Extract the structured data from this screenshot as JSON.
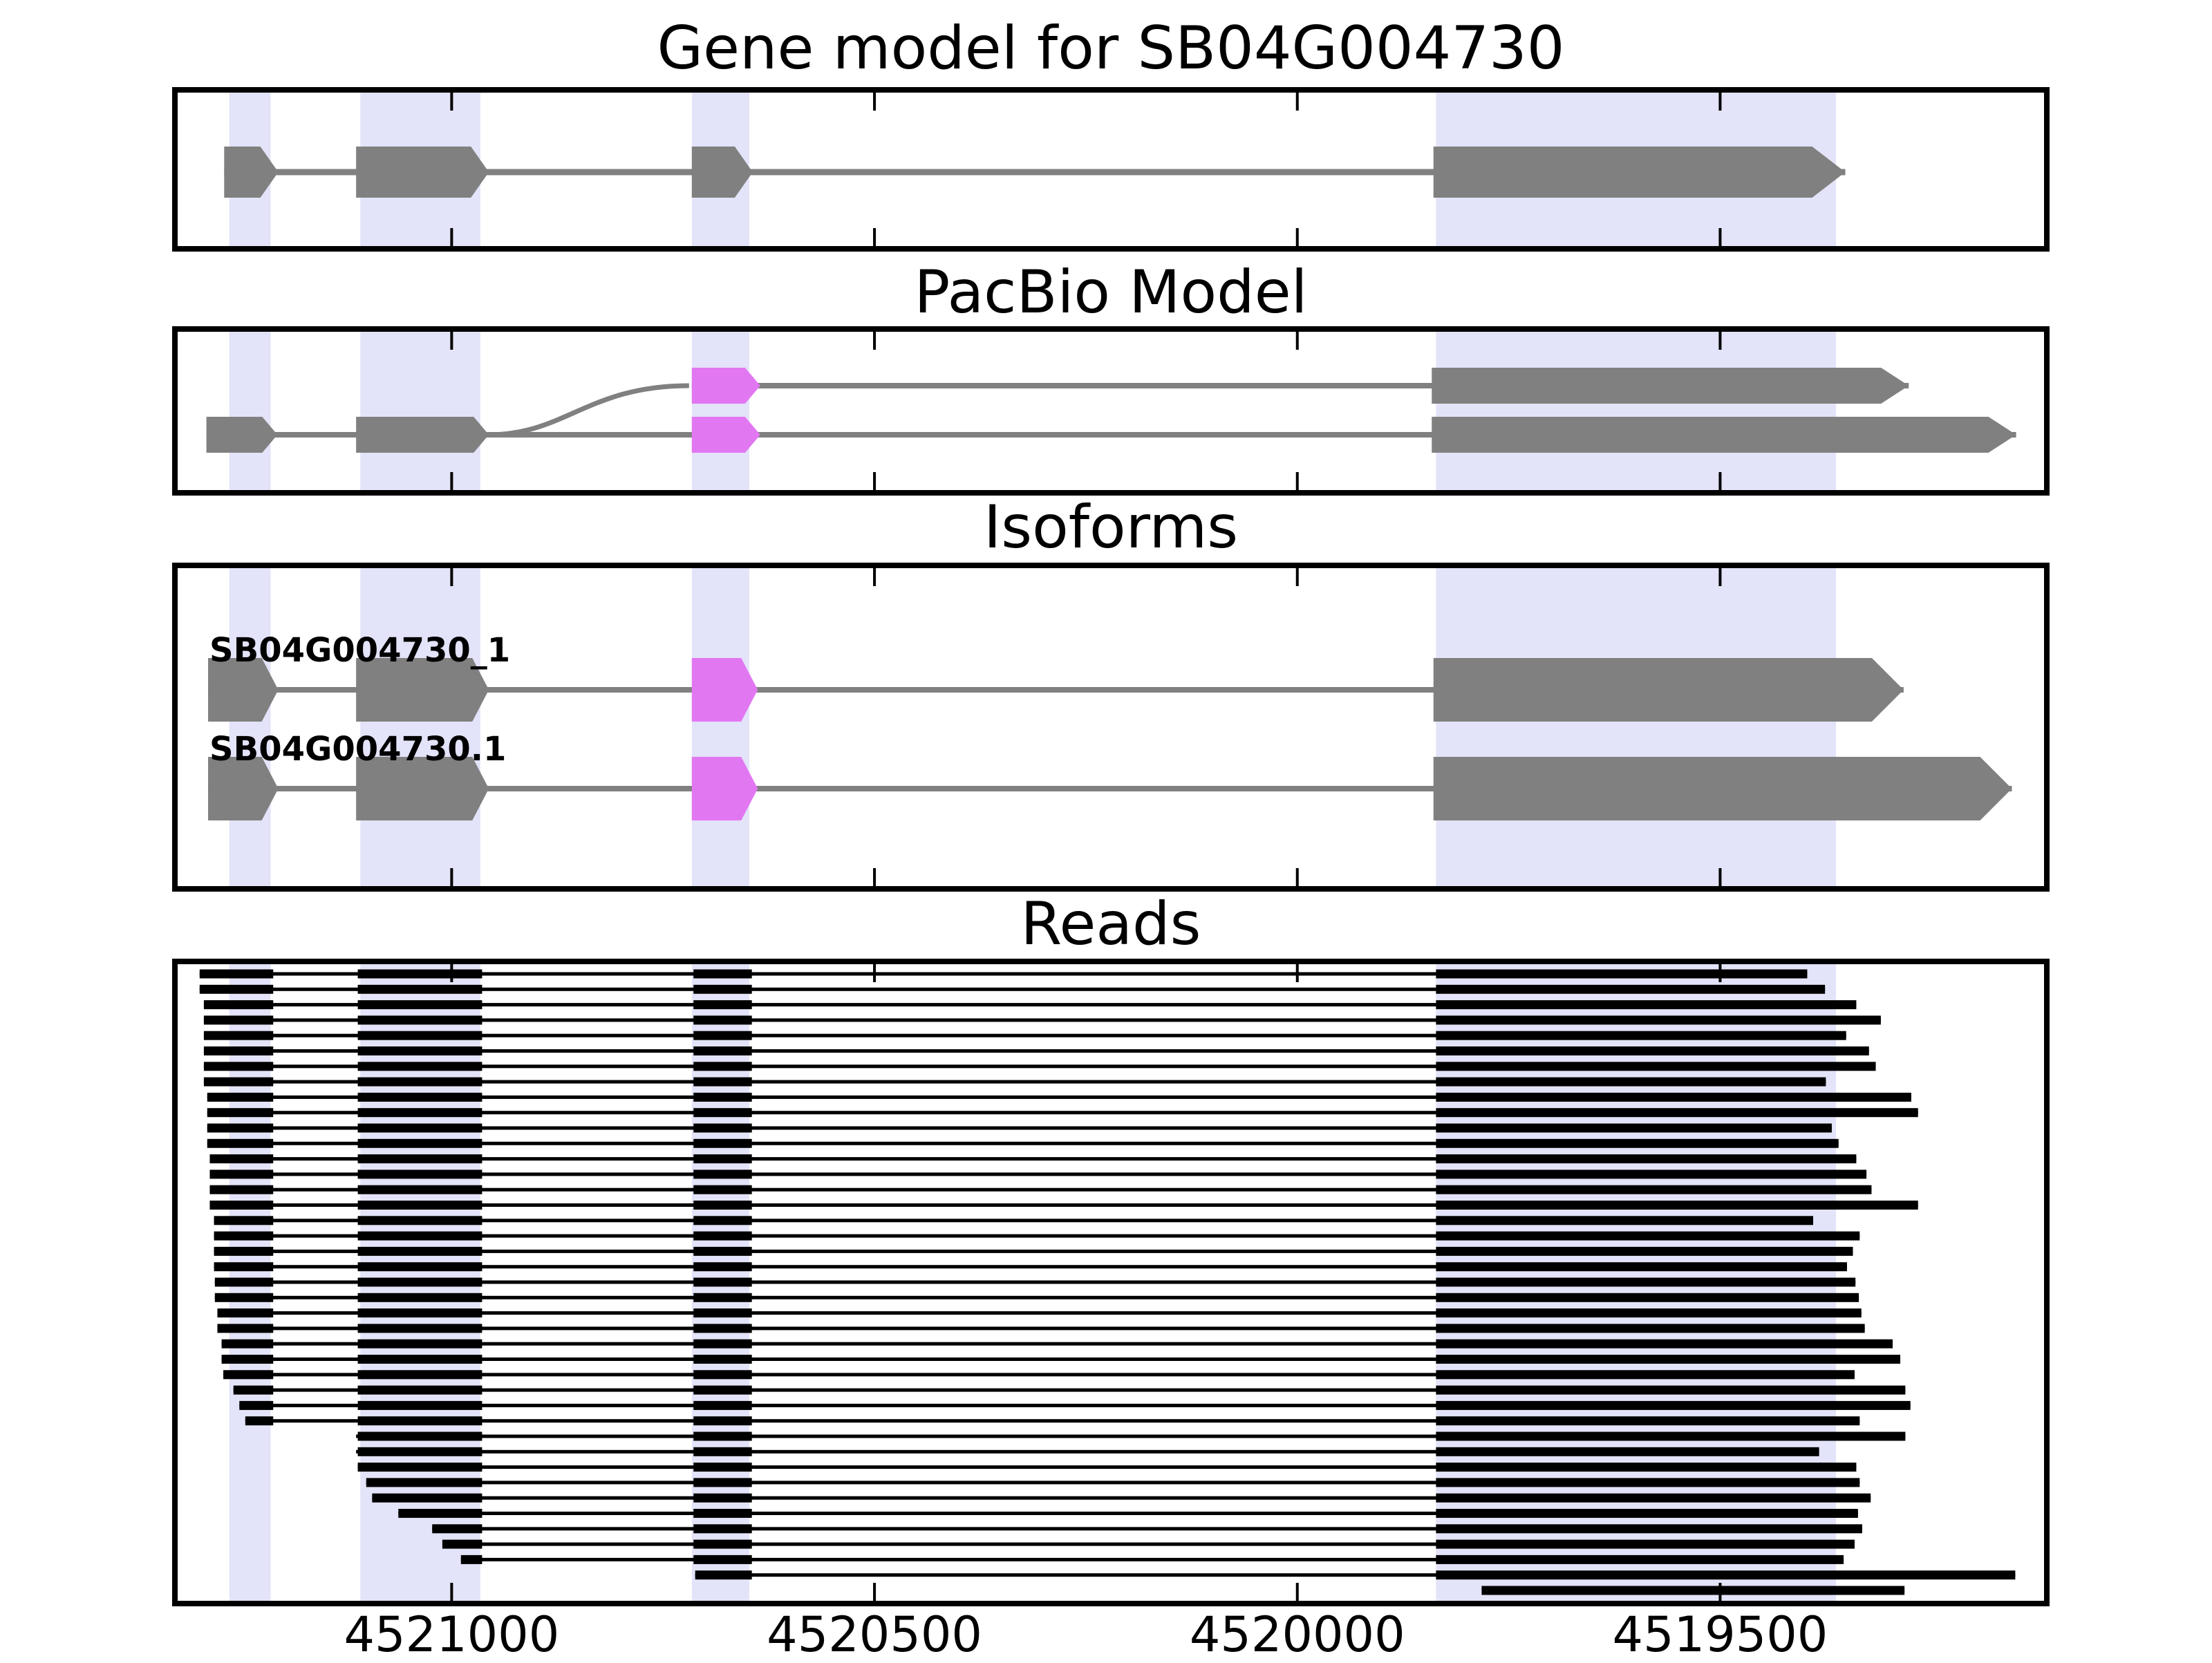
{
  "main_title": "Gene model for SB04G004730",
  "panels": {
    "gene_model": {
      "title": "Gene model for SB04G004730"
    },
    "pacbio": {
      "title": "PacBio Model"
    },
    "isoforms": {
      "title": "Isoforms"
    },
    "reads": {
      "title": "Reads"
    }
  },
  "colors": {
    "exon_gray": "#808080",
    "novel_exon_magenta": "#E277F2",
    "highlight_band": "#E3E3F9",
    "read_black": "#000000",
    "axis_black": "#000000",
    "background": "#ffffff"
  },
  "axis": {
    "direction": "decreasing",
    "xlim": [
      4521324,
      4519117
    ],
    "ticks": [
      {
        "coord": 4521000,
        "label": "4521000"
      },
      {
        "coord": 4520500,
        "label": "4520500"
      },
      {
        "coord": 4520000,
        "label": "4520000"
      },
      {
        "coord": 4519500,
        "label": "4519500"
      }
    ]
  },
  "chart_data": {
    "type": "gene-model-tracks",
    "title": "Gene model for SB04G004730",
    "gene_id": "SB04G004730",
    "highlight_regions": [
      [
        4521263,
        4521214
      ],
      [
        4521108,
        4520966
      ],
      [
        4520716,
        4520648
      ],
      [
        4519836,
        4519363
      ]
    ],
    "gene_model": {
      "exons": [
        {
          "span": [
            4521269,
            4521205
          ],
          "color": "gray"
        },
        {
          "span": [
            4521113,
            4520956
          ],
          "color": "gray"
        },
        {
          "span": [
            4520716,
            4520644
          ],
          "color": "gray"
        },
        {
          "span": [
            4519839,
            4519352
          ],
          "color": "gray"
        }
      ]
    },
    "pacbio_rows": [
      {
        "exons": [
          {
            "span": [
              4520716,
              4520635
            ],
            "color": "novel"
          },
          {
            "span": [
              4519841,
              4519277
            ],
            "color": "gray"
          }
        ]
      },
      {
        "exons": [
          {
            "span": [
              4521290,
              4521206
            ],
            "color": "gray"
          },
          {
            "span": [
              4521113,
              4520956
            ],
            "color": "gray"
          },
          {
            "span": [
              4520716,
              4520635
            ],
            "color": "novel"
          },
          {
            "span": [
              4519841,
              4519150
            ],
            "color": "gray"
          }
        ]
      }
    ],
    "junction_curve": {
      "from_coord": 4520956,
      "to_coord": 4520716
    },
    "isoforms": [
      {
        "label": "SB04G004730_1",
        "exons": [
          {
            "span": [
              4521288,
              4521205
            ],
            "color": "gray"
          },
          {
            "span": [
              4521113,
              4520956
            ],
            "color": "gray"
          },
          {
            "span": [
              4520716,
              4520638
            ],
            "color": "novel"
          },
          {
            "span": [
              4519839,
              4519283
            ],
            "color": "gray"
          }
        ]
      },
      {
        "label": "SB04G004730.1",
        "exons": [
          {
            "span": [
              4521288,
              4521205
            ],
            "color": "gray"
          },
          {
            "span": [
              4521113,
              4520956
            ],
            "color": "gray"
          },
          {
            "span": [
              4520716,
              4520638
            ],
            "color": "novel"
          },
          {
            "span": [
              4519839,
              4519155
            ],
            "color": "gray"
          }
        ]
      }
    ],
    "reads": {
      "exon_blocks": [
        [
          4521298,
          4521211
        ],
        [
          4521111,
          4520964
        ],
        [
          4520714,
          4520645
        ],
        [
          4519836,
          null
        ]
      ],
      "spans": [
        [
          4521298,
          4519397
        ],
        [
          4521298,
          4519376
        ],
        [
          4521293,
          4519339
        ],
        [
          4521293,
          4519310
        ],
        [
          4521293,
          4519351
        ],
        [
          4521293,
          4519324
        ],
        [
          4521293,
          4519316
        ],
        [
          4521293,
          4519375
        ],
        [
          4521289,
          4519274
        ],
        [
          4521289,
          4519266
        ],
        [
          4521289,
          4519368
        ],
        [
          4521289,
          4519360
        ],
        [
          4521286,
          4519339
        ],
        [
          4521286,
          4519327
        ],
        [
          4521286,
          4519321
        ],
        [
          4521286,
          4519266
        ],
        [
          4521281,
          4519390
        ],
        [
          4521281,
          4519335
        ],
        [
          4521281,
          4519343
        ],
        [
          4521281,
          4519350
        ],
        [
          4521280,
          4519340
        ],
        [
          4521280,
          4519336
        ],
        [
          4521277,
          4519333
        ],
        [
          4521277,
          4519329
        ],
        [
          4521272,
          4519296
        ],
        [
          4521272,
          4519287
        ],
        [
          4521270,
          4519341
        ],
        [
          4521258,
          4519281
        ],
        [
          4521251,
          4519275
        ],
        [
          4521244,
          4519335
        ],
        [
          4521113,
          4519281
        ],
        [
          4521113,
          4519383
        ],
        [
          4521111,
          4519339
        ],
        [
          4521101,
          4519335
        ],
        [
          4521094,
          4519322
        ],
        [
          4521063,
          4519337
        ],
        [
          4521023,
          4519332
        ],
        [
          4521011,
          4519341
        ],
        [
          4520989,
          4519354
        ],
        [
          4520712,
          4519151
        ],
        [
          4519782,
          4519282
        ]
      ]
    }
  }
}
